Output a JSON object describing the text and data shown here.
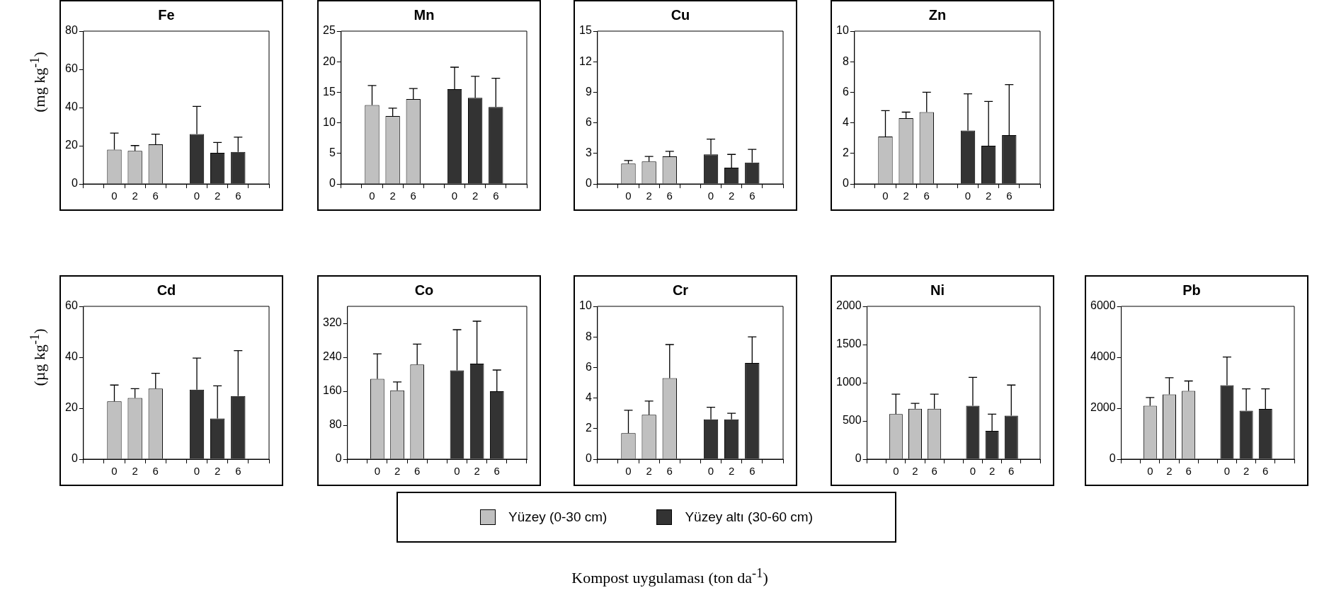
{
  "chart_data": [
    {
      "type": "bar",
      "title": "Fe",
      "ylabel": "(mg kg$^{-1}$)",
      "categories": [
        null,
        "0",
        "2",
        "6",
        null,
        "0",
        "2",
        "6",
        null
      ],
      "ylim": [
        0,
        80
      ],
      "yticks": [
        0,
        20,
        40,
        60,
        80
      ],
      "grid": false,
      "series": [
        {
          "color": "#c0c0c0",
          "values": [
            null,
            18,
            17.3,
            20.7,
            null,
            null,
            null,
            null,
            null
          ],
          "errors": [
            null,
            [
              18,
              26.6
            ],
            [
              17.3,
              20.1
            ],
            [
              20.7,
              26.1
            ],
            null,
            null,
            null,
            null,
            null
          ]
        },
        {
          "color": "#333333",
          "values": [
            null,
            null,
            null,
            null,
            null,
            26.1,
            16.3,
            16.8,
            null
          ],
          "errors": [
            null,
            null,
            null,
            null,
            null,
            [
              26.1,
              40.6
            ],
            [
              16.3,
              21.7
            ],
            [
              16.8,
              24.5
            ],
            null
          ]
        }
      ]
    },
    {
      "type": "bar",
      "title": "Mn",
      "categories": [
        null,
        "0",
        "2",
        "6",
        null,
        "0",
        "2",
        "6",
        null
      ],
      "ylim": [
        0,
        25
      ],
      "yticks": [
        0,
        5,
        10,
        15,
        20,
        25
      ],
      "grid": false,
      "series": [
        {
          "color": "#c0c0c0",
          "values": [
            null,
            12.9,
            11.1,
            13.9,
            null,
            null,
            null,
            null,
            null
          ],
          "errors": [
            null,
            [
              12.9,
              16.1
            ],
            [
              11.1,
              12.4
            ],
            [
              13.9,
              15.6
            ],
            null,
            null,
            null,
            null,
            null
          ]
        },
        {
          "color": "#333333",
          "values": [
            null,
            null,
            null,
            null,
            null,
            15.5,
            14.1,
            12.6,
            null
          ],
          "errors": [
            null,
            null,
            null,
            null,
            null,
            [
              15.5,
              19.1
            ],
            [
              14.1,
              17.6
            ],
            [
              12.6,
              17.3
            ],
            null
          ]
        }
      ]
    },
    {
      "type": "bar",
      "title": "Cu",
      "categories": [
        null,
        "0",
        "2",
        "6",
        null,
        "0",
        "2",
        "6",
        null
      ],
      "ylim": [
        0,
        15
      ],
      "yticks": [
        0,
        3,
        6,
        9,
        12,
        15
      ],
      "grid": false,
      "series": [
        {
          "color": "#c0c0c0",
          "values": [
            null,
            2.0,
            2.2,
            2.7,
            null,
            null,
            null,
            null,
            null
          ],
          "errors": [
            null,
            [
              2.0,
              2.3
            ],
            [
              2.2,
              2.7
            ],
            [
              2.7,
              3.2
            ],
            null,
            null,
            null,
            null,
            null
          ]
        },
        {
          "color": "#333333",
          "values": [
            null,
            null,
            null,
            null,
            null,
            2.9,
            1.6,
            2.1,
            null
          ],
          "errors": [
            null,
            null,
            null,
            null,
            null,
            [
              2.9,
              4.4
            ],
            [
              1.6,
              2.9
            ],
            [
              2.1,
              3.4
            ],
            null
          ]
        }
      ]
    },
    {
      "type": "bar",
      "title": "Zn",
      "categories": [
        null,
        "0",
        "2",
        "6",
        null,
        "0",
        "2",
        "6",
        null
      ],
      "ylim": [
        0,
        10
      ],
      "yticks": [
        0,
        2,
        4,
        6,
        8,
        10
      ],
      "grid": false,
      "series": [
        {
          "color": "#c0c0c0",
          "values": [
            null,
            3.1,
            4.3,
            4.7,
            null,
            null,
            null,
            null,
            null
          ],
          "errors": [
            null,
            [
              3.1,
              4.8
            ],
            [
              4.3,
              4.7
            ],
            [
              4.7,
              6.0
            ],
            null,
            null,
            null,
            null,
            null
          ]
        },
        {
          "color": "#333333",
          "values": [
            null,
            null,
            null,
            null,
            null,
            3.5,
            2.5,
            3.2,
            null
          ],
          "errors": [
            null,
            null,
            null,
            null,
            null,
            [
              3.5,
              5.9
            ],
            [
              2.5,
              5.4
            ],
            [
              3.2,
              6.5
            ],
            null
          ]
        }
      ]
    },
    {
      "type": "bar",
      "title": "Cd",
      "ylabel": "(µg kg$^{-1}$)",
      "categories": [
        null,
        "0",
        "2",
        "6",
        null,
        "0",
        "2",
        "6",
        null
      ],
      "ylim": [
        0,
        60
      ],
      "yticks": [
        0,
        20,
        40,
        60
      ],
      "grid": false,
      "series": [
        {
          "color": "#c0c0c0",
          "values": [
            null,
            22.7,
            24.0,
            27.7,
            null,
            null,
            null,
            null,
            null
          ],
          "errors": [
            null,
            [
              22.7,
              29.1
            ],
            [
              24.0,
              27.7
            ],
            [
              27.7,
              33.7
            ],
            null,
            null,
            null,
            null,
            null
          ]
        },
        {
          "color": "#333333",
          "values": [
            null,
            null,
            null,
            null,
            null,
            27.3,
            16.0,
            24.8,
            null
          ],
          "errors": [
            null,
            null,
            null,
            null,
            null,
            [
              27.3,
              39.7
            ],
            [
              16.0,
              28.8
            ],
            [
              24.8,
              42.6
            ],
            null
          ]
        }
      ]
    },
    {
      "type": "bar",
      "title": "Co",
      "categories": [
        null,
        "0",
        "2",
        "6",
        null,
        "0",
        "2",
        "6",
        null
      ],
      "ylim": [
        0,
        360
      ],
      "yticks": [
        0,
        80,
        160,
        240,
        320
      ],
      "grid": false,
      "series": [
        {
          "color": "#c0c0c0",
          "values": [
            null,
            189,
            162,
            223,
            null,
            null,
            null,
            null,
            null
          ],
          "errors": [
            null,
            [
              189,
              248
            ],
            [
              162,
              182
            ],
            [
              223,
              271
            ],
            null,
            null,
            null,
            null,
            null
          ]
        },
        {
          "color": "#333333",
          "values": [
            null,
            null,
            null,
            null,
            null,
            209,
            225,
            160,
            null
          ],
          "errors": [
            null,
            null,
            null,
            null,
            null,
            [
              209,
              305
            ],
            [
              225,
              325
            ],
            [
              160,
              210
            ],
            null
          ]
        }
      ]
    },
    {
      "type": "bar",
      "title": "Cr",
      "xlabel": "Kompost uygulaması  (ton da$^{-1}$)",
      "legend": "bottom",
      "categories": [
        null,
        "0",
        "2",
        "6",
        null,
        "0",
        "2",
        "6",
        null
      ],
      "ylim": [
        0,
        10
      ],
      "yticks": [
        0,
        2,
        4,
        6,
        8,
        10
      ],
      "grid": false,
      "series": [
        {
          "name": "Yüzey (0-30 cm)",
          "color": "#c0c0c0",
          "values": [
            null,
            1.7,
            2.9,
            5.3,
            null,
            null,
            null,
            null,
            null
          ],
          "errors": [
            null,
            [
              1.7,
              3.2
            ],
            [
              2.9,
              3.8
            ],
            [
              5.3,
              7.5
            ],
            null,
            null,
            null,
            null,
            null
          ]
        },
        {
          "name": "Yüzey altı (30-60 cm)",
          "color": "#333333",
          "values": [
            null,
            null,
            null,
            null,
            null,
            2.6,
            2.6,
            6.3,
            null
          ],
          "errors": [
            null,
            null,
            null,
            null,
            null,
            [
              2.6,
              3.4
            ],
            [
              2.6,
              3.0
            ],
            [
              6.3,
              8.0
            ],
            null
          ]
        }
      ]
    },
    {
      "type": "bar",
      "title": "Ni",
      "categories": [
        null,
        "0",
        "2",
        "6",
        null,
        "0",
        "2",
        "6",
        null
      ],
      "ylim": [
        0,
        2000
      ],
      "yticks": [
        0,
        500,
        1000,
        1500,
        2000
      ],
      "grid": false,
      "series": [
        {
          "color": "#c0c0c0",
          "values": [
            null,
            590,
            660,
            660,
            null,
            null,
            null,
            null,
            null
          ],
          "errors": [
            null,
            [
              590,
              850
            ],
            [
              660,
              730
            ],
            [
              660,
              850
            ],
            null,
            null,
            null,
            null,
            null
          ]
        },
        {
          "color": "#333333",
          "values": [
            null,
            null,
            null,
            null,
            null,
            700,
            370,
            570,
            null
          ],
          "errors": [
            null,
            null,
            null,
            null,
            null,
            [
              700,
              1070
            ],
            [
              370,
              590
            ],
            [
              570,
              970
            ],
            null
          ]
        }
      ]
    },
    {
      "type": "bar",
      "title": "Pb",
      "categories": [
        null,
        "0",
        "2",
        "6",
        null,
        "0",
        "2",
        "6",
        null
      ],
      "ylim": [
        0,
        6000
      ],
      "yticks": [
        0,
        2000,
        4000,
        6000
      ],
      "grid": false,
      "series": [
        {
          "color": "#c0c0c0",
          "values": [
            null,
            2100,
            2540,
            2680,
            null,
            null,
            null,
            null,
            null
          ],
          "errors": [
            null,
            [
              2100,
              2420
            ],
            [
              2540,
              3200
            ],
            [
              2680,
              3070
            ],
            null,
            null,
            null,
            null,
            null
          ]
        },
        {
          "color": "#333333",
          "values": [
            null,
            null,
            null,
            null,
            null,
            2900,
            1900,
            1970,
            null
          ],
          "errors": [
            null,
            null,
            null,
            null,
            null,
            [
              2900,
              4010
            ],
            [
              1900,
              2760
            ],
            [
              1970,
              2760
            ],
            null
          ]
        }
      ]
    }
  ]
}
